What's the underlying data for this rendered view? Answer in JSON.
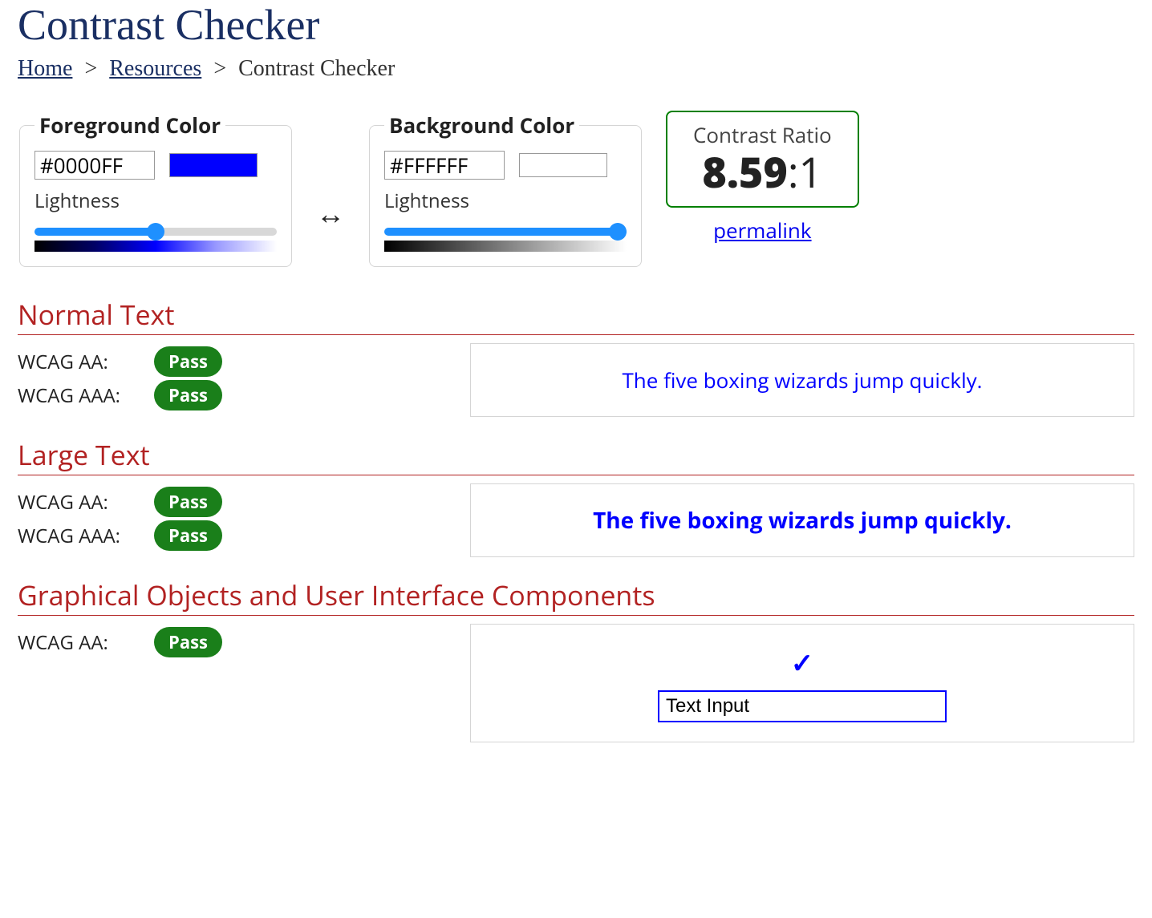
{
  "page": {
    "title": "Contrast Checker"
  },
  "breadcrumb": {
    "home": "Home",
    "resources": "Resources",
    "current": "Contrast Checker",
    "separator": ">"
  },
  "foreground": {
    "legend": "Foreground Color",
    "hex": "#0000FF",
    "swatch_color": "#0000FF",
    "lightness_label": "Lightness",
    "slider": {
      "min": 0,
      "max": 100,
      "value": 50
    },
    "slider_track_fill": "#1e90ff",
    "slider_track_bg": "#d8d8d8",
    "gradient_css": "linear-gradient(to right, #000000 0%, #000066 25%, #0000ff 50%, #9999ff 75%, #ffffff 100%)"
  },
  "background": {
    "legend": "Background Color",
    "hex": "#FFFFFF",
    "swatch_color": "#FFFFFF",
    "lightness_label": "Lightness",
    "slider": {
      "min": 0,
      "max": 100,
      "value": 100
    },
    "slider_track_fill": "#1e90ff",
    "slider_track_bg": "#d8d8d8",
    "gradient_css": "linear-gradient(to right, #000000 0%, #808080 50%, #ffffff 100%)"
  },
  "swap_glyph": "↔",
  "ratio": {
    "label": "Contrast Ratio",
    "value": "8.59",
    "suffix": ":1",
    "border_color": "#008000"
  },
  "permalink_text": "permalink",
  "sections": {
    "normal": {
      "title": "Normal Text",
      "aa_label": "WCAG AA:",
      "aa_result": "Pass",
      "aa_color": "#1a7f1a",
      "aaa_label": "WCAG AAA:",
      "aaa_result": "Pass",
      "aaa_color": "#1a7f1a",
      "sample_text": "The five boxing wizards jump quickly.",
      "sample_fg": "#0000FF",
      "sample_bg": "#FFFFFF"
    },
    "large": {
      "title": "Large Text",
      "aa_label": "WCAG AA:",
      "aa_result": "Pass",
      "aa_color": "#1a7f1a",
      "aaa_label": "WCAG AAA:",
      "aaa_result": "Pass",
      "aaa_color": "#1a7f1a",
      "sample_text": "The five boxing wizards jump quickly.",
      "sample_fg": "#0000FF",
      "sample_bg": "#FFFFFF"
    },
    "ui": {
      "title": "Graphical Objects and User Interface Components",
      "aa_label": "WCAG AA:",
      "aa_result": "Pass",
      "aa_color": "#1a7f1a",
      "check_color": "#0000FF",
      "input_value": "Text Input",
      "input_border": "#0000FF",
      "input_bg": "#FFFFFF"
    }
  }
}
